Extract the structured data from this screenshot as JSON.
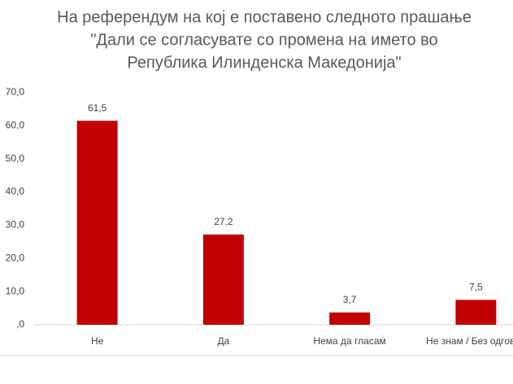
{
  "chart_data": {
    "type": "bar",
    "title": [
      "На референдум на кој е поставено следното прашање",
      "\"Дали се согласувате со промена на името во",
      "Република Илинденска Македонија\""
    ],
    "categories": [
      "Не",
      "Да",
      "Нема да гласам",
      "Не знам / Без одговор"
    ],
    "values": [
      61.5,
      27.2,
      3.7,
      7.5
    ],
    "value_labels": [
      "61,5",
      "27,2",
      "3,7",
      "7,5"
    ],
    "color": "#c00000",
    "ylim": [
      0,
      70
    ],
    "yticks": [
      {
        "value": 0,
        "label": ",0"
      },
      {
        "value": 10,
        "label": "10,0"
      },
      {
        "value": 20,
        "label": "20,0"
      },
      {
        "value": 30,
        "label": "30,0"
      },
      {
        "value": 40,
        "label": "40,0"
      },
      {
        "value": 50,
        "label": "50,0"
      },
      {
        "value": 60,
        "label": "60,0"
      },
      {
        "value": 70,
        "label": "70,0"
      }
    ],
    "grid": false
  }
}
